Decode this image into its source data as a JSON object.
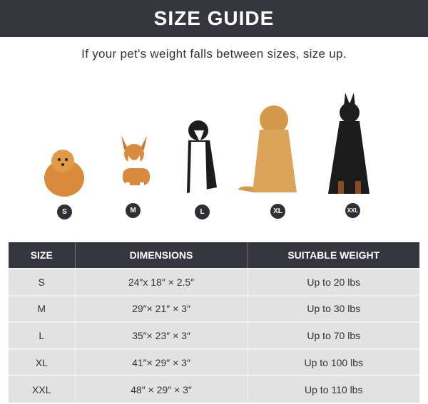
{
  "title": "SIZE GUIDE",
  "subtitle": "If your pet's weight falls between sizes, size up.",
  "sizes": [
    "S",
    "M",
    "L",
    "XL",
    "XXL"
  ],
  "table": {
    "headers": [
      "SIZE",
      "DIMENSIONS",
      "SUITABLE WEIGHT"
    ],
    "rows": [
      [
        "S",
        "24″x 18″ × 2.5″",
        "Up to 20 lbs"
      ],
      [
        "M",
        "29″× 21″ × 3″",
        "Up to 30 lbs"
      ],
      [
        "L",
        "35″× 23″ × 3″",
        "Up to 70 lbs"
      ],
      [
        "XL",
        "41″× 29″ × 3″",
        "Up to 100 lbs"
      ],
      [
        "XXL",
        "48″ × 29″ × 3″",
        "Up to 110 lbs"
      ]
    ]
  }
}
